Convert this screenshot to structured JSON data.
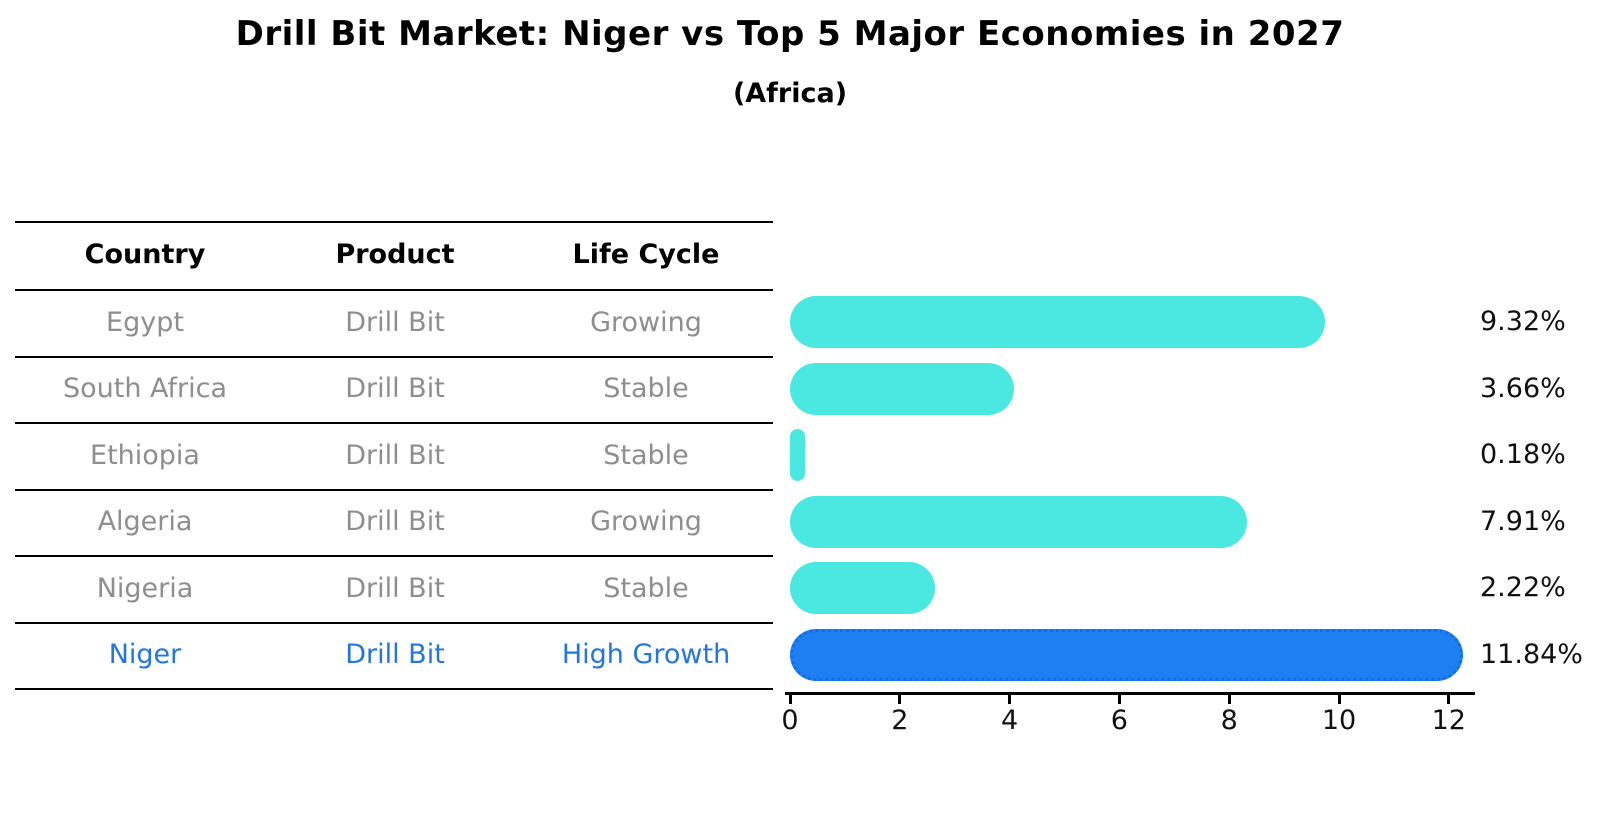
{
  "chart_data": {
    "type": "bar",
    "orientation": "horizontal",
    "title": "Drill Bit Market: Niger vs Top 5 Major Economies in 2027",
    "subtitle": "(Africa)",
    "categories": [
      "Egypt",
      "South Africa",
      "Ethiopia",
      "Algeria",
      "Nigeria",
      "Niger"
    ],
    "values": [
      9.32,
      3.66,
      0.18,
      7.91,
      2.22,
      11.84
    ],
    "value_labels": [
      "9.32%",
      "3.66%",
      "0.18%",
      "7.91%",
      "2.22%",
      "11.84%"
    ],
    "xlim": [
      0,
      12.4
    ],
    "xticks": [
      0,
      2,
      4,
      6,
      8,
      10,
      12
    ],
    "grid": false,
    "legend": false,
    "bar_color": "#4ae8e0",
    "highlight_color": "#1e80f0",
    "highlight_border_color": "#0d6fe8",
    "highlight_index": 5
  },
  "table": {
    "headers": [
      "Country",
      "Product",
      "Life Cycle"
    ],
    "rows": [
      {
        "country": "Egypt",
        "product": "Drill Bit",
        "life_cycle": "Growing",
        "highlight": false
      },
      {
        "country": "South Africa",
        "product": "Drill Bit",
        "life_cycle": "Stable",
        "highlight": false
      },
      {
        "country": "Ethiopia",
        "product": "Drill Bit",
        "life_cycle": "Stable",
        "highlight": false
      },
      {
        "country": "Algeria",
        "product": "Drill Bit",
        "life_cycle": "Growing",
        "highlight": false
      },
      {
        "country": "Nigeria",
        "product": "Drill Bit",
        "life_cycle": "Stable",
        "highlight": false
      },
      {
        "country": "Niger",
        "product": "Drill Bit",
        "life_cycle": "High Growth",
        "highlight": true
      }
    ],
    "text_color": "#8e8e8e",
    "highlight_text_color": "#2176e0"
  }
}
